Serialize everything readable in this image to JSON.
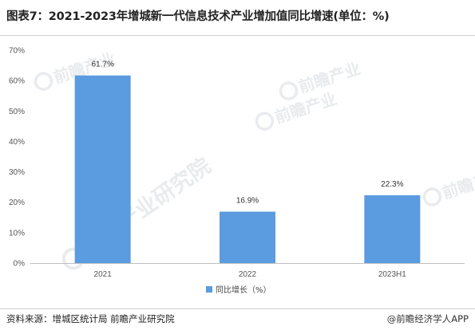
{
  "title": "图表7：2021-2023年增城新一代信息技术产业增加值同比增速(单位：%)",
  "footer": {
    "source": "资料来源：增城区统计局 前瞻产业研究院",
    "credit": "@前瞻经济学人APP"
  },
  "watermarks": {
    "main": "前瞻产业研究院",
    "small": "前瞻产业"
  },
  "chart_data": {
    "type": "bar",
    "categories": [
      "2021",
      "2022",
      "2023H1"
    ],
    "series": [
      {
        "name": "同比增长（%）",
        "values": [
          61.7,
          16.9,
          22.3
        ],
        "color": "#5b9bdf"
      }
    ],
    "data_labels": [
      "61.7%",
      "16.9%",
      "22.3%"
    ],
    "y_ticks": [
      "0%",
      "10%",
      "20%",
      "30%",
      "40%",
      "50%",
      "60%",
      "70%"
    ],
    "ylim": [
      0,
      70
    ],
    "grid": false,
    "legend": "bottom-center",
    "xlabel": "",
    "ylabel": ""
  }
}
